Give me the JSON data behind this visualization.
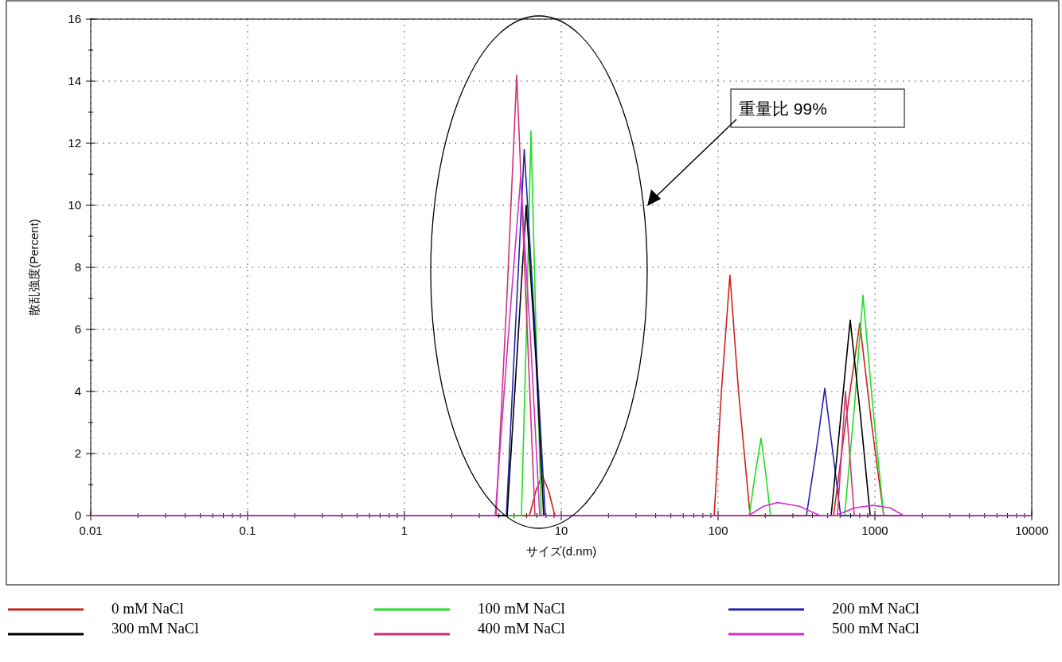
{
  "chart_data": {
    "type": "line",
    "xlabel": "サイズ(d.nm)",
    "ylabel": "散乱強度(Percent)",
    "annotations": [
      "重量比 99%"
    ],
    "log": "x",
    "xlim": [
      0.01,
      10000
    ],
    "ylim": [
      0,
      16
    ],
    "xticks": [
      0.01,
      0.1,
      1,
      10,
      100,
      1000,
      10000
    ],
    "yticks": [
      0,
      2,
      4,
      6,
      8,
      10,
      12,
      14,
      16
    ],
    "grid": true,
    "legend": "bottom",
    "series": [
      {
        "name": "0 mM NaCl",
        "color": "#cc2222",
        "x": [
          0.01,
          6.27,
          6.9,
          7.55,
          8.3,
          9.11,
          94.4,
          105,
          119,
          135,
          160,
          545,
          650,
          801,
          950,
          1138,
          10000
        ],
        "values": [
          0,
          0,
          0.8,
          1.3,
          0.8,
          0,
          0,
          4.0,
          7.75,
          4.0,
          0,
          0,
          3.0,
          6.2,
          3.0,
          0,
          0
        ]
      },
      {
        "name": "100 mM NaCl",
        "color": "#22dd22",
        "x": [
          0.01,
          5.57,
          6.0,
          6.41,
          6.9,
          7.47,
          158,
          172,
          188,
          202,
          216,
          641,
          740,
          839,
          970,
          1138,
          10000
        ],
        "values": [
          0,
          0,
          6,
          12.4,
          6,
          0,
          0,
          1.3,
          2.5,
          1.3,
          0,
          0,
          3.5,
          7.1,
          3.5,
          0,
          0
        ]
      },
      {
        "name": "200 mM NaCl",
        "color": "#2222aa",
        "x": [
          0.01,
          4.47,
          5.1,
          5.81,
          6.8,
          7.91,
          366,
          420,
          479,
          540,
          605,
          10000
        ],
        "values": [
          0,
          0,
          6,
          11.8,
          6,
          0,
          0,
          2,
          4.1,
          2,
          0,
          0
        ]
      },
      {
        "name": "300 mM NaCl",
        "color": "#000000",
        "x": [
          0.01,
          4.52,
          5.2,
          5.98,
          6.9,
          7.73,
          526,
          606,
          696,
          810,
          933,
          10000
        ],
        "values": [
          0,
          0,
          5,
          10.0,
          5,
          0,
          0,
          3.2,
          6.3,
          3.2,
          0,
          0
        ]
      },
      {
        "name": "400 mM NaCl",
        "color": "#cc3377",
        "x": [
          0.01,
          3.84,
          4.5,
          5.2,
          5.95,
          6.8,
          577,
          612,
          649,
          690,
          738,
          10000
        ],
        "values": [
          0,
          0,
          7,
          14.2,
          7,
          0,
          0,
          2,
          4.0,
          2,
          0,
          0
        ]
      },
      {
        "name": "500 mM NaCl",
        "color": "#cc33cc",
        "x": [
          0.01,
          3.79,
          4.55,
          5.51,
          6.4,
          7.29,
          156,
          195,
          240,
          330,
          447,
          564,
          740,
          977,
          1250,
          1524,
          10000
        ],
        "values": [
          0,
          0,
          5.5,
          10.9,
          5.5,
          0,
          0,
          0.3,
          0.42,
          0.3,
          0,
          0,
          0.25,
          0.33,
          0.25,
          0,
          0
        ]
      }
    ]
  }
}
